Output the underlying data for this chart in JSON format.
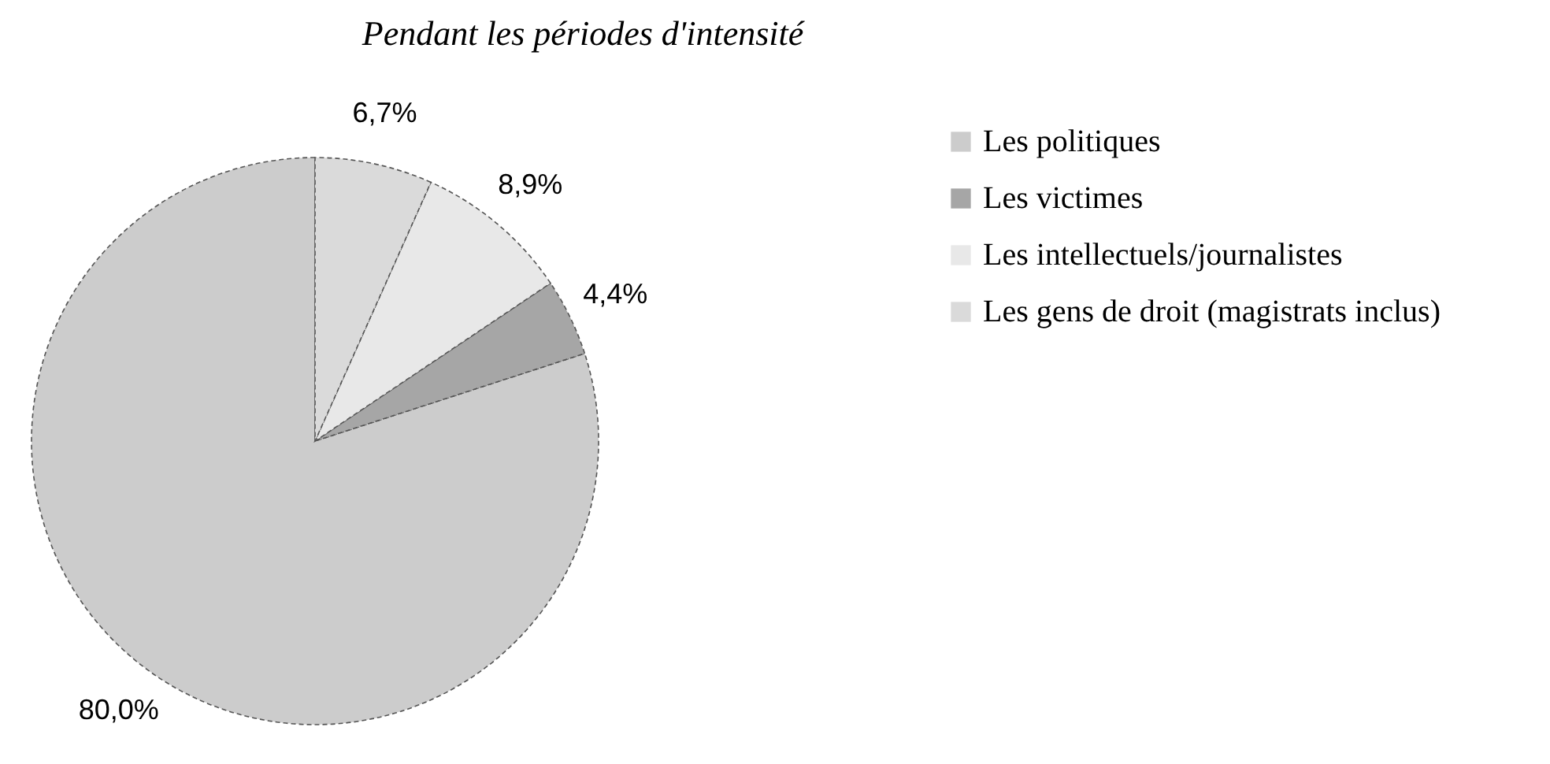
{
  "chart_data": {
    "type": "pie",
    "title": "Pendant les périodes d'intensité",
    "categories": [
      "Les politiques",
      "Les victimes",
      "Les intellectuels/journalistes",
      "Les gens de droit (magistrats inclus)"
    ],
    "values": [
      80.0,
      4.4,
      8.9,
      6.7
    ],
    "colors": [
      "#cccccc",
      "#a6a6a6",
      "#e8e8e8",
      "#dadada"
    ],
    "value_labels": [
      "80,0%",
      "4,4%",
      "8,9%",
      "6,7%"
    ],
    "legend": "right"
  }
}
